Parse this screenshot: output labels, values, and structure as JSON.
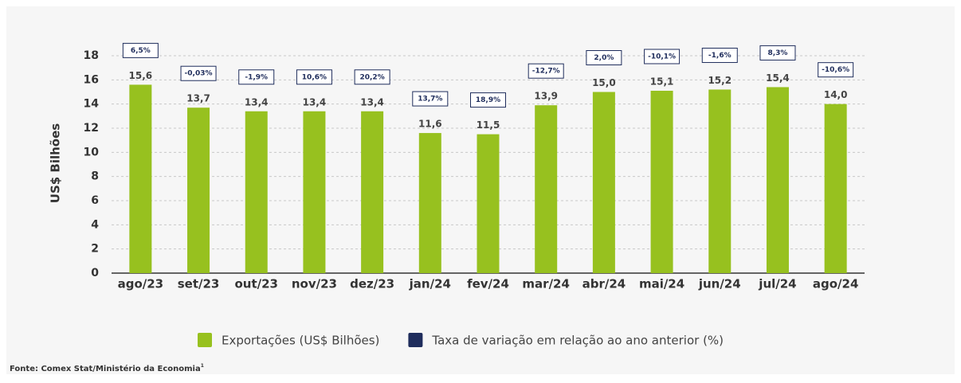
{
  "chart_data": {
    "type": "bar",
    "y_label": "US$ Bilhões",
    "categories": [
      "ago/23",
      "set/23",
      "out/23",
      "nov/23",
      "dez/23",
      "jan/24",
      "fev/24",
      "mar/24",
      "abr/24",
      "mai/24",
      "jun/24",
      "jul/24",
      "ago/24"
    ],
    "series": [
      {
        "name": "Exportações (US$ Bilhões)",
        "color": "#97c11f",
        "values": [
          15.6,
          13.7,
          13.4,
          13.4,
          13.4,
          11.6,
          11.5,
          13.9,
          15.0,
          15.1,
          15.2,
          15.4,
          14.0
        ],
        "value_labels": [
          "15,6",
          "13,7",
          "13,4",
          "13,4",
          "13,4",
          "11,6",
          "11,5",
          "13,9",
          "15,0",
          "15,1",
          "15,2",
          "15,4",
          "14,0"
        ]
      },
      {
        "name": "Taxa de variação em relação ao ano anterior (%)",
        "color": "#1f2d5c",
        "display": "labels",
        "values": [
          6.5,
          -0.03,
          -1.9,
          10.6,
          20.2,
          13.7,
          18.9,
          -12.7,
          2.0,
          -10.1,
          -1.6,
          8.3,
          -10.6
        ],
        "value_labels": [
          "6,5%",
          "-0,03%",
          "-1,9%",
          "10,6%",
          "20,2%",
          "13,7%",
          "18,9%",
          "-12,7%",
          "2,0%",
          "-10,1%",
          "-1,6%",
          "8,3%",
          "-10,6%"
        ]
      }
    ],
    "ylim": [
      0,
      18
    ],
    "yticks": [
      0,
      2,
      4,
      6,
      8,
      10,
      12,
      14,
      16,
      18
    ],
    "grid": true,
    "legend": "bottom",
    "source": "Fonte: Comex Stat/Ministério da Economia",
    "source_note": "1"
  }
}
